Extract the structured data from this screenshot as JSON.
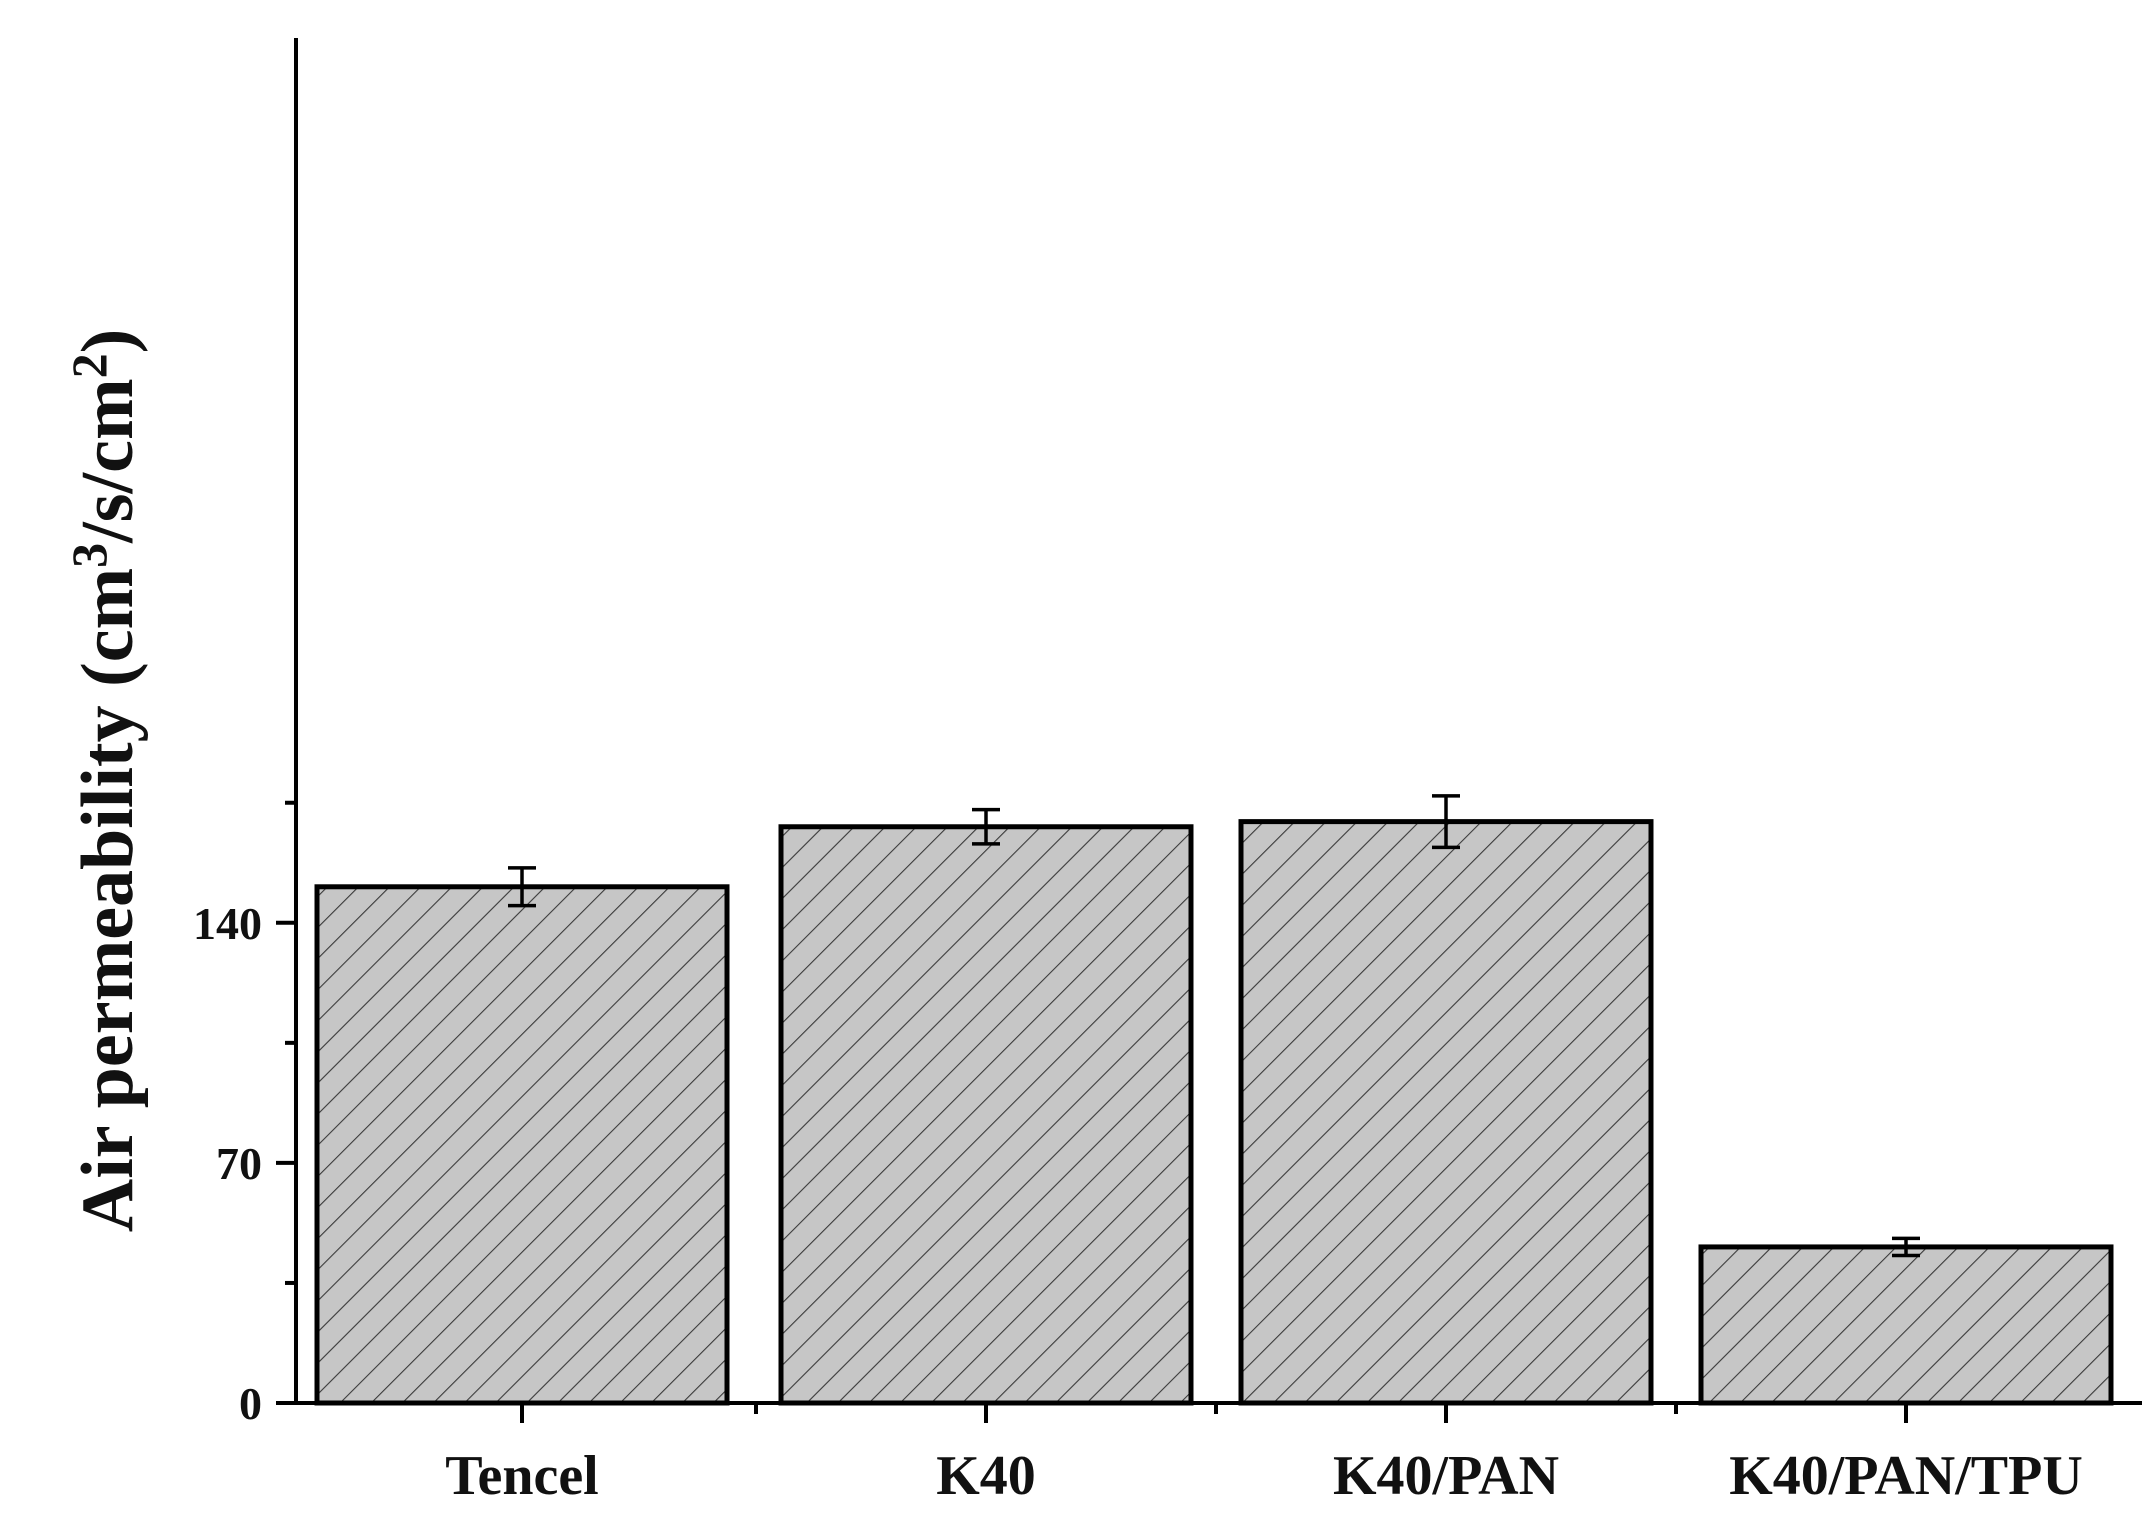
{
  "chart_data": {
    "type": "bar",
    "title": "",
    "xlabel": "",
    "ylabel_prefix": "Air permeability (cm",
    "ylabel_sup1": "3",
    "ylabel_mid": "/s/cm",
    "ylabel_sup2": "2",
    "ylabel_suffix": ")",
    "categories": [
      "Tencel",
      "K40",
      "K40/PAN",
      "K40/PAN/TPU"
    ],
    "values": [
      150.5,
      168,
      169.5,
      45.5
    ],
    "errors": [
      5.5,
      5,
      7.5,
      2.5
    ],
    "ylim": [
      0,
      200
    ],
    "yticks": [
      0,
      70,
      140
    ],
    "ytick_labels": [
      "0",
      "70",
      "140"
    ],
    "bar_fill": "#c6c6c6",
    "bar_hatch": "diagonal",
    "bar_edge": "#000000",
    "grid": false,
    "legend": "none"
  }
}
